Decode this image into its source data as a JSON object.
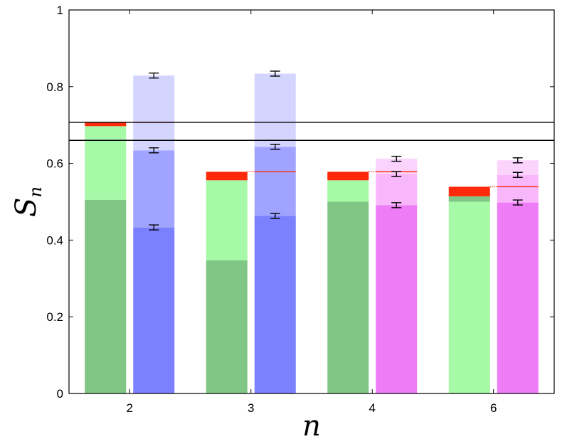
{
  "chart_data": {
    "type": "bar",
    "title": "",
    "xlabel": "n",
    "ylabel": "S",
    "ylabel_subscript": "n",
    "ylim": [
      0,
      1
    ],
    "yticks": [
      0,
      0.2,
      0.4,
      0.6,
      0.8,
      1
    ],
    "ytick_labels": [
      "0",
      "0.2",
      "0.4",
      "0.6",
      "0.8",
      "1"
    ],
    "categories": [
      "2",
      "3",
      "4",
      "6"
    ],
    "grid": false,
    "reference_lines": [
      0.707,
      0.66
    ],
    "colors": {
      "green_dark": "#80c786",
      "green_light": "#a6f9a6",
      "red": "#ff2a0a",
      "blue_dark": "#7b80ff",
      "blue_mid": "#a0a4ff",
      "blue_light": "#d3d5ff",
      "magenta_dark": "#ef7cf7",
      "magenta_mid": "#f8b6fb",
      "magenta_light": "#fbd3fd",
      "red_line": "#ff2a0a",
      "black": "#000000"
    },
    "groups": [
      {
        "n": "2",
        "left_bar": [
          {
            "from": 0,
            "to": 0.505,
            "color": "green_dark"
          },
          {
            "from": 0.505,
            "to": 0.697,
            "color": "green_light"
          },
          {
            "from": 0.697,
            "to": 0.707,
            "color": "red"
          }
        ],
        "right_bar": [
          {
            "from": 0,
            "to": 0.433,
            "color": "blue_dark"
          },
          {
            "from": 0.433,
            "to": 0.634,
            "color": "blue_mid"
          },
          {
            "from": 0.634,
            "to": 0.829,
            "color": "blue_light"
          }
        ],
        "red_level": 0.707,
        "error_bars": [
          0.433,
          0.634,
          0.829
        ]
      },
      {
        "n": "3",
        "left_bar": [
          {
            "from": 0,
            "to": 0.347,
            "color": "green_dark"
          },
          {
            "from": 0.347,
            "to": 0.556,
            "color": "green_light"
          },
          {
            "from": 0.556,
            "to": 0.578,
            "color": "red"
          }
        ],
        "right_bar": [
          {
            "from": 0,
            "to": 0.463,
            "color": "blue_dark"
          },
          {
            "from": 0.463,
            "to": 0.643,
            "color": "blue_mid"
          },
          {
            "from": 0.643,
            "to": 0.834,
            "color": "blue_light"
          }
        ],
        "red_level": 0.578,
        "error_bars": [
          0.463,
          0.643,
          0.834
        ]
      },
      {
        "n": "4",
        "left_bar": [
          {
            "from": 0,
            "to": 0.5,
            "color": "green_dark"
          },
          {
            "from": 0.5,
            "to": 0.556,
            "color": "green_light"
          },
          {
            "from": 0.556,
            "to": 0.578,
            "color": "red"
          }
        ],
        "right_bar": [
          {
            "from": 0,
            "to": 0.491,
            "color": "magenta_dark"
          },
          {
            "from": 0.491,
            "to": 0.572,
            "color": "magenta_mid"
          },
          {
            "from": 0.572,
            "to": 0.612,
            "color": "magenta_light"
          }
        ],
        "red_level": 0.578,
        "error_bars": [
          0.491,
          0.572,
          0.612
        ]
      },
      {
        "n": "6",
        "left_bar": [
          {
            "from": 0,
            "to": 0.5,
            "color": "green_light"
          },
          {
            "from": 0.5,
            "to": 0.514,
            "color": "green_dark"
          },
          {
            "from": 0.514,
            "to": 0.539,
            "color": "red"
          }
        ],
        "right_bar": [
          {
            "from": 0,
            "to": 0.498,
            "color": "magenta_dark"
          },
          {
            "from": 0.498,
            "to": 0.57,
            "color": "magenta_mid"
          },
          {
            "from": 0.57,
            "to": 0.608,
            "color": "magenta_light"
          }
        ],
        "red_level": 0.539,
        "error_bars": [
          0.498,
          0.57,
          0.608
        ]
      }
    ]
  }
}
